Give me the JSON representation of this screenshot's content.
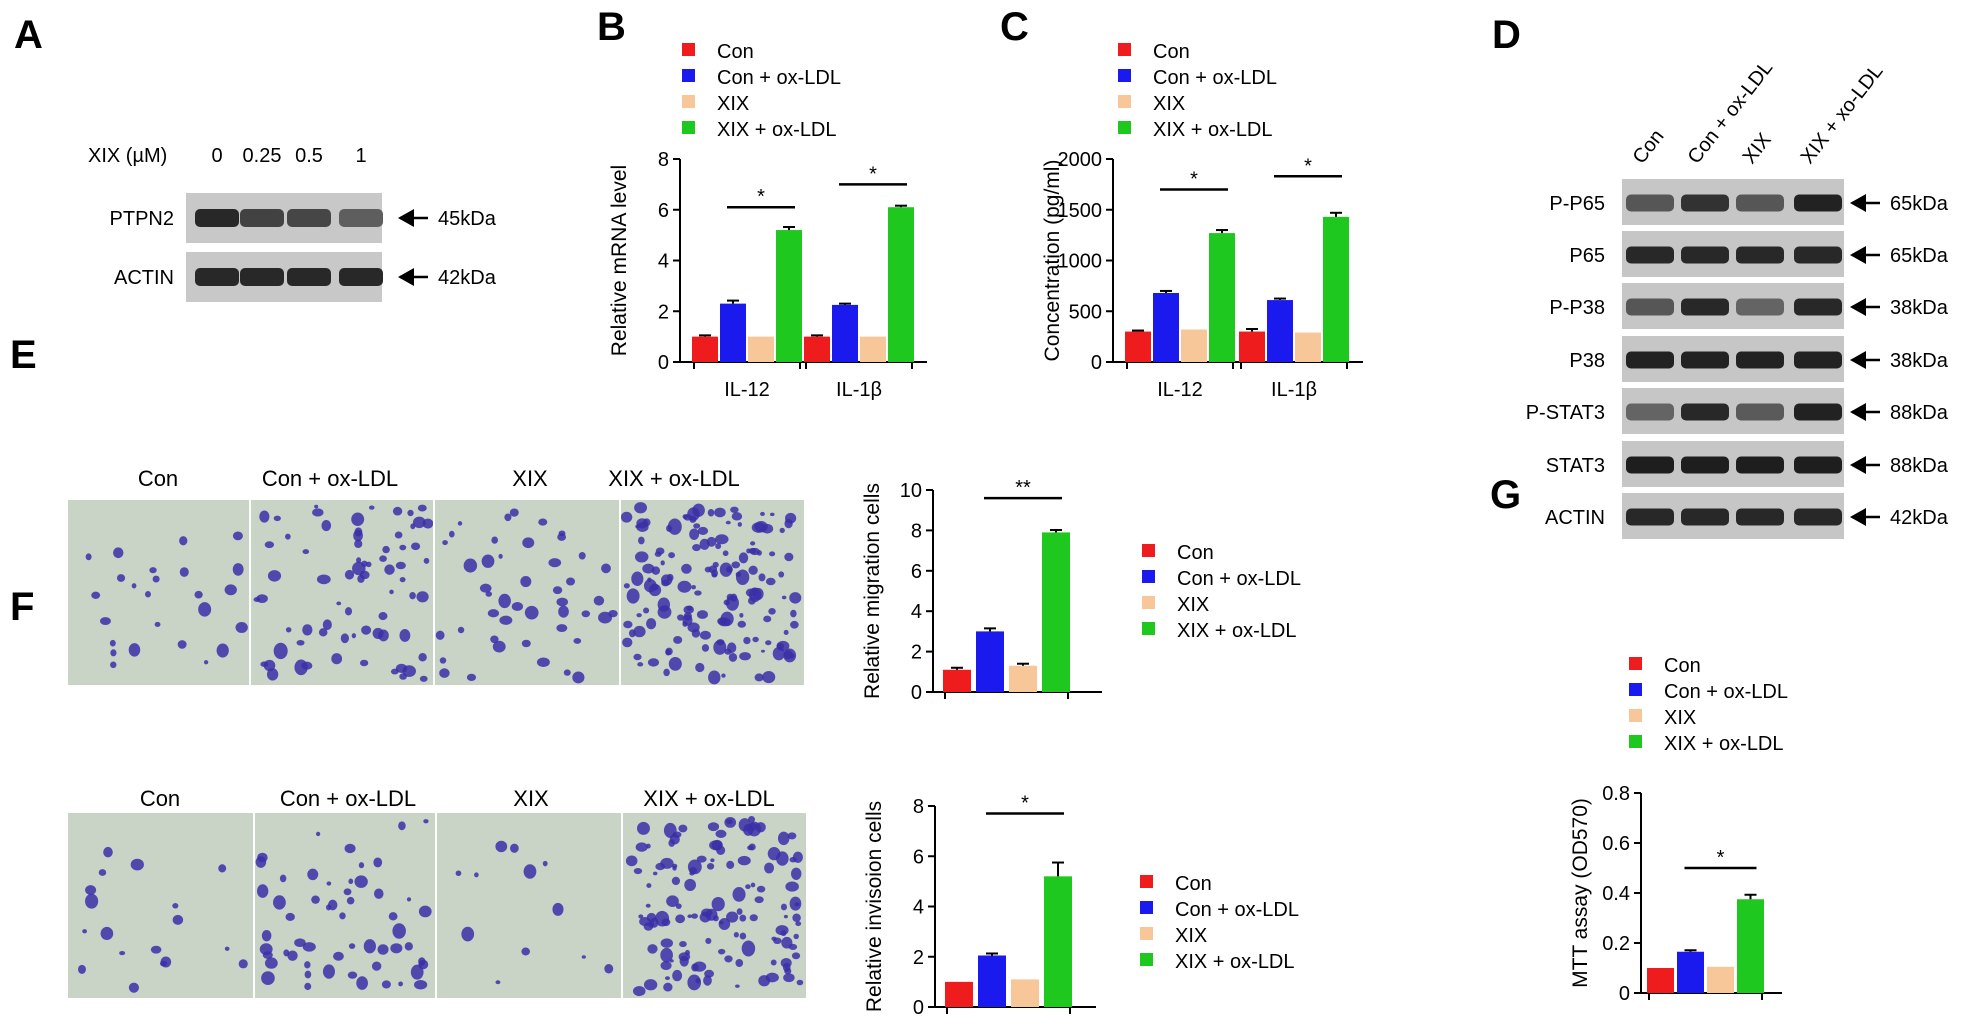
{
  "colors": {
    "con": "#ee1c1c",
    "con_oxldl": "#1a1aee",
    "xix": "#f7c79a",
    "xix_oxldl": "#1ec81e"
  },
  "panel_letters": [
    "A",
    "B",
    "C",
    "D",
    "E",
    "F",
    "G"
  ],
  "legend": [
    {
      "label": "Con",
      "color": "#ee1c1c"
    },
    {
      "label": "Con + ox-LDL",
      "color": "#1a1aee"
    },
    {
      "label": "XIX",
      "color": "#f7c79a"
    },
    {
      "label": "XIX + ox-LDL",
      "color": "#1ec81e"
    }
  ],
  "panel_a": {
    "header_label": "XIX (µM)",
    "doses": [
      "0",
      "0.25",
      "0.5",
      "1"
    ],
    "rows": [
      {
        "name": "PTPN2",
        "size": "45kDa",
        "intensity": [
          0.85,
          0.72,
          0.7,
          0.58
        ]
      },
      {
        "name": "ACTIN",
        "size": "42kDa",
        "intensity": [
          0.85,
          0.85,
          0.85,
          0.85
        ]
      }
    ]
  },
  "panel_d": {
    "columns": [
      "Con",
      "Con + ox-LDL",
      "XIX",
      "XIX + xo-LDL"
    ],
    "rows": [
      {
        "name": "P-P65",
        "size": "65kDa",
        "intensity": [
          0.62,
          0.8,
          0.62,
          0.88
        ]
      },
      {
        "name": "P65",
        "size": "65kDa",
        "intensity": [
          0.85,
          0.85,
          0.85,
          0.85
        ]
      },
      {
        "name": "P-P38",
        "size": "38kDa",
        "intensity": [
          0.62,
          0.85,
          0.55,
          0.85
        ]
      },
      {
        "name": "P38",
        "size": "38kDa",
        "intensity": [
          0.88,
          0.88,
          0.88,
          0.88
        ]
      },
      {
        "name": "P-STAT3",
        "size": "88kDa",
        "intensity": [
          0.55,
          0.85,
          0.6,
          0.88
        ]
      },
      {
        "name": "STAT3",
        "size": "88kDa",
        "intensity": [
          0.9,
          0.9,
          0.9,
          0.9
        ]
      },
      {
        "name": "ACTIN",
        "size": "42kDa",
        "intensity": [
          0.85,
          0.85,
          0.85,
          0.85
        ]
      }
    ]
  },
  "micrograph_labels": [
    "Con",
    "Con + ox-LDL",
    "XIX",
    "XIX + ox-LDL"
  ],
  "chart_data": [
    {
      "panel": "B",
      "type": "bar",
      "ylabel": "Relative mRNA level",
      "categories": [
        "IL-12",
        "IL-1β"
      ],
      "ylim": [
        0,
        8
      ],
      "yticks": [
        0,
        2,
        4,
        6,
        8
      ],
      "series": [
        {
          "name": "Con",
          "values": [
            1.0,
            1.0
          ],
          "errors": [
            0.05,
            0.05
          ]
        },
        {
          "name": "Con + ox-LDL",
          "values": [
            2.3,
            2.25
          ],
          "errors": [
            0.12,
            0.05
          ]
        },
        {
          "name": "XIX",
          "values": [
            1.0,
            1.0
          ],
          "errors": [
            0.0,
            0.0
          ]
        },
        {
          "name": "XIX + ox-LDL",
          "values": [
            5.2,
            6.1
          ],
          "errors": [
            0.12,
            0.06
          ]
        }
      ],
      "significance": [
        {
          "category": 0,
          "label": "*",
          "y": 6.1
        },
        {
          "category": 1,
          "label": "*",
          "y": 7.0
        }
      ]
    },
    {
      "panel": "C",
      "type": "bar",
      "ylabel": "Concentration (pg/ml)",
      "categories": [
        "IL-12",
        "IL-1β"
      ],
      "ylim": [
        0,
        2000
      ],
      "yticks": [
        0,
        500,
        1000,
        1500,
        2000
      ],
      "series": [
        {
          "name": "Con",
          "values": [
            300,
            300
          ],
          "errors": [
            10,
            25
          ]
        },
        {
          "name": "Con + ox-LDL",
          "values": [
            680,
            610
          ],
          "errors": [
            20,
            15
          ]
        },
        {
          "name": "XIX",
          "values": [
            320,
            290
          ],
          "errors": [
            0,
            0
          ]
        },
        {
          "name": "XIX + ox-LDL",
          "values": [
            1270,
            1430
          ],
          "errors": [
            30,
            40
          ]
        }
      ],
      "significance": [
        {
          "category": 0,
          "label": "*",
          "y": 1700
        },
        {
          "category": 1,
          "label": "*",
          "y": 1830
        }
      ]
    },
    {
      "panel": "E",
      "type": "bar",
      "ylabel": "Relative migration cells",
      "categories": [
        ""
      ],
      "ylim": [
        0,
        10
      ],
      "yticks": [
        0,
        2,
        4,
        6,
        8,
        10
      ],
      "series": [
        {
          "name": "Con",
          "values": [
            1.1
          ],
          "errors": [
            0.1
          ]
        },
        {
          "name": "Con + ox-LDL",
          "values": [
            3.0
          ],
          "errors": [
            0.15
          ]
        },
        {
          "name": "XIX",
          "values": [
            1.3
          ],
          "errors": [
            0.1
          ]
        },
        {
          "name": "XIX + ox-LDL",
          "values": [
            7.9
          ],
          "errors": [
            0.12
          ]
        }
      ],
      "significance": [
        {
          "category": 0,
          "label": "**",
          "y": 9.6
        }
      ]
    },
    {
      "panel": "F",
      "type": "bar",
      "ylabel": "Relative invisoion cells",
      "categories": [
        ""
      ],
      "ylim": [
        0,
        8
      ],
      "yticks": [
        0,
        2,
        4,
        6,
        8
      ],
      "series": [
        {
          "name": "Con",
          "values": [
            1.0
          ],
          "errors": [
            0.0
          ]
        },
        {
          "name": "Con + ox-LDL",
          "values": [
            2.05
          ],
          "errors": [
            0.08
          ]
        },
        {
          "name": "XIX",
          "values": [
            1.1
          ],
          "errors": [
            0.0
          ]
        },
        {
          "name": "XIX + ox-LDL",
          "values": [
            5.2
          ],
          "errors": [
            0.55
          ]
        }
      ],
      "significance": [
        {
          "category": 0,
          "label": "*",
          "y": 7.7
        }
      ]
    },
    {
      "panel": "G",
      "type": "bar",
      "ylabel": "MTT assay (OD570)",
      "categories": [
        ""
      ],
      "ylim": [
        0,
        0.8
      ],
      "yticks": [
        0,
        0.2,
        0.4,
        0.6,
        0.8
      ],
      "series": [
        {
          "name": "Con",
          "values": [
            0.1
          ],
          "errors": [
            0.0
          ]
        },
        {
          "name": "Con + ox-LDL",
          "values": [
            0.165
          ],
          "errors": [
            0.006
          ]
        },
        {
          "name": "XIX",
          "values": [
            0.105
          ],
          "errors": [
            0.0
          ]
        },
        {
          "name": "XIX + ox-LDL",
          "values": [
            0.375
          ],
          "errors": [
            0.018
          ]
        }
      ],
      "significance": [
        {
          "category": 0,
          "label": "*",
          "y": 0.5
        }
      ]
    }
  ]
}
